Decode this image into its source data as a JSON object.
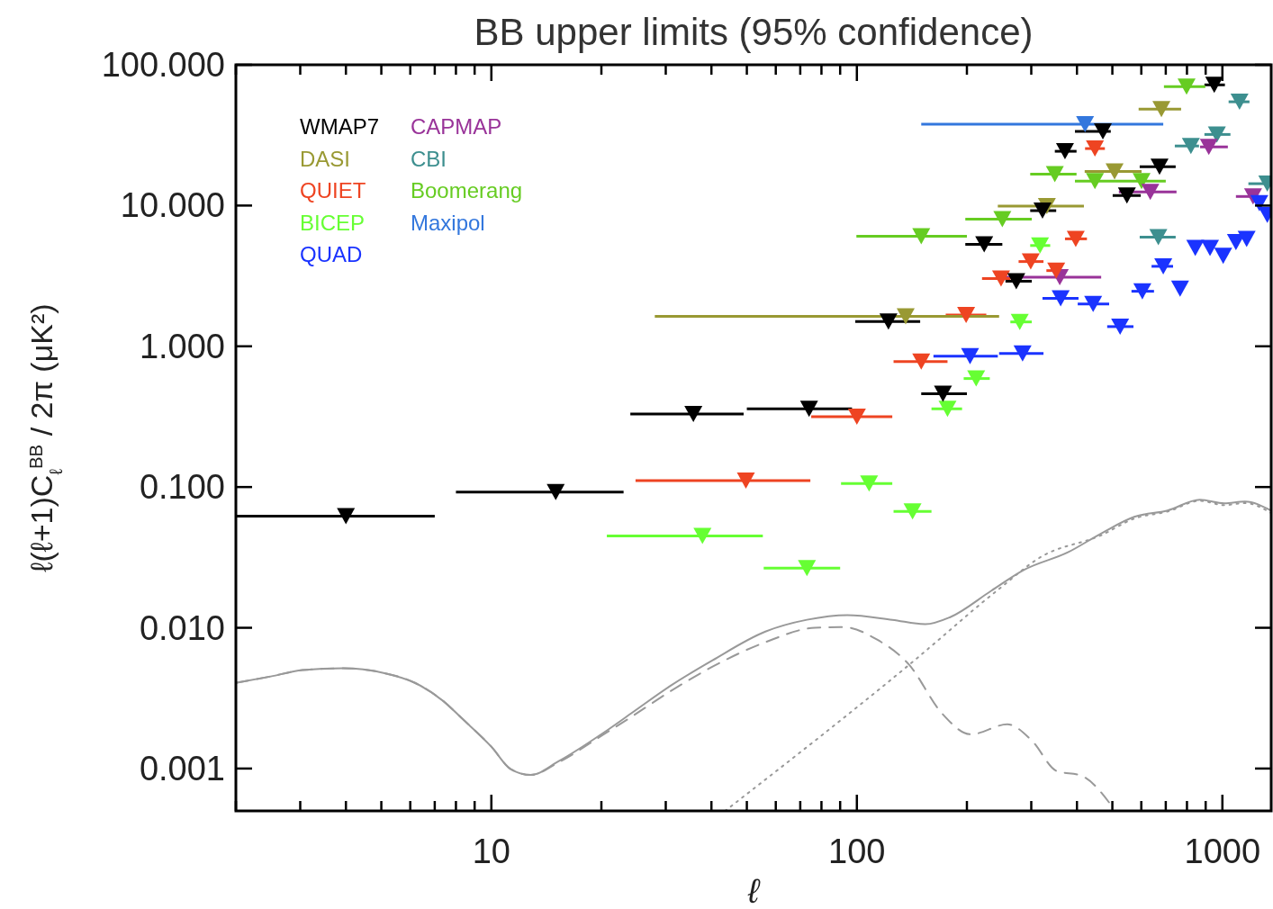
{
  "chart_data": {
    "type": "scatter",
    "title": "BB upper limits (95% confidence)",
    "xlabel": "ℓ",
    "ylabel": "ℓ(ℓ+1)C$_{ℓ}$$^{BB}$ / 2π (μK²)",
    "log": "xy",
    "xlim": [
      2,
      1360
    ],
    "ylim": [
      0.0005,
      100
    ],
    "xticks": [
      {
        "value": 2,
        "label": null
      },
      {
        "value": 3,
        "label": null
      },
      {
        "value": 4,
        "label": null
      },
      {
        "value": 5,
        "label": null
      },
      {
        "value": 6,
        "label": null
      },
      {
        "value": 7,
        "label": null
      },
      {
        "value": 8,
        "label": null
      },
      {
        "value": 9,
        "label": null
      },
      10,
      {
        "value": 20,
        "label": null
      },
      {
        "value": 30,
        "label": null
      },
      {
        "value": 40,
        "label": null
      },
      {
        "value": 50,
        "label": null
      },
      {
        "value": 60,
        "label": null
      },
      {
        "value": 70,
        "label": null
      },
      {
        "value": 80,
        "label": null
      },
      {
        "value": 90,
        "label": null
      },
      100,
      {
        "value": 200,
        "label": null
      },
      {
        "value": 300,
        "label": null
      },
      {
        "value": 400,
        "label": null
      },
      {
        "value": 500,
        "label": null
      },
      {
        "value": 600,
        "label": null
      },
      {
        "value": 700,
        "label": null
      },
      {
        "value": 800,
        "label": null
      },
      {
        "value": 900,
        "label": null
      },
      1000
    ],
    "yticks": [
      {
        "value": 0.001,
        "label": "0.001"
      },
      {
        "value": 0.01,
        "label": "0.010"
      },
      {
        "value": 0.1,
        "label": "0.100"
      },
      {
        "value": 1,
        "label": "1.000"
      },
      {
        "value": 10,
        "label": "10.000"
      },
      {
        "value": 100,
        "label": "100.000"
      }
    ],
    "legend": "top left",
    "grid": false,
    "series": [
      {
        "name": "WMAP7",
        "type": "scatter",
        "marker": "triangle",
        "color": "#000000",
        "x": [
          4.0,
          15.0,
          35.7,
          74,
          122,
          172,
          223,
          273,
          322,
          371,
          471,
          548,
          673,
          950
        ],
        "values": [
          0.062,
          0.092,
          0.33,
          0.36,
          1.5,
          0.46,
          5.3,
          2.9,
          9.2,
          24.3,
          33.6,
          11.8,
          18.9,
          72
        ],
        "xerrors": [
          [
            2,
            7
          ],
          [
            8,
            23
          ],
          [
            24,
            49
          ],
          [
            50,
            97
          ],
          [
            99,
            149
          ],
          [
            150,
            200
          ],
          [
            198,
            250
          ],
          [
            255,
            301
          ],
          [
            298,
            351
          ],
          [
            348,
            399
          ],
          [
            395,
            495
          ],
          [
            501,
            598
          ],
          [
            594,
            745
          ],
          [
            893,
            1016
          ]
        ]
      },
      {
        "name": "DASI",
        "type": "scatter",
        "marker": "triangle",
        "color": "#999933",
        "x": [
          136,
          331,
          507,
          681
        ],
        "values": [
          1.63,
          9.9,
          17.5,
          48.5
        ],
        "xerrors": [
          [
            28,
            245
          ],
          [
            243,
            418
          ],
          [
            420,
            601
          ],
          [
            590,
            771
          ]
        ]
      },
      {
        "name": "QUIET",
        "type": "scatter",
        "marker": "triangle",
        "color": "#ee4422",
        "x": [
          49.7,
          100,
          150,
          199,
          248,
          299,
          351,
          397,
          448
        ],
        "values": [
          0.111,
          0.316,
          0.78,
          1.67,
          3.03,
          4.0,
          3.45,
          5.8,
          25.4
        ],
        "xerrors": [
          [
            24.8,
            74.6
          ],
          [
            75,
            125
          ],
          [
            126,
            177
          ],
          [
            175,
            226
          ],
          [
            220,
            263
          ],
          [
            277,
            324
          ],
          [
            330,
            375
          ],
          [
            371,
            426
          ],
          [
            421,
            477
          ]
        ]
      },
      {
        "name": "BICEP",
        "type": "scatter",
        "marker": "triangle",
        "color": "#66ff33",
        "x": [
          37.8,
          73,
          108,
          142,
          177,
          212,
          279,
          317
        ],
        "values": [
          0.045,
          0.0265,
          0.106,
          0.067,
          0.36,
          0.59,
          1.49,
          5.2
        ],
        "xerrors": [
          [
            20.7,
            55.3
          ],
          [
            55.6,
            90
          ],
          [
            90.5,
            125
          ],
          [
            126,
            160
          ],
          [
            160,
            194
          ],
          [
            196,
            231
          ],
          [
            263,
            301
          ],
          [
            298,
            338
          ]
        ]
      },
      {
        "name": "QUAD",
        "type": "scatter",
        "marker": "triangle",
        "color": "#1a33ff",
        "x": [
          204,
          284,
          361,
          443,
          525,
          604,
          689,
          766,
          843,
          925,
          1005,
          1089,
          1165,
          1262,
          1327
        ],
        "values": [
          0.85,
          0.89,
          2.19,
          2.0,
          1.38,
          2.46,
          3.7,
          2.57,
          5.0,
          5.0,
          4.4,
          5.5,
          5.8,
          10.4,
          8.6
        ],
        "xerrors": [
          [
            162,
            243
          ],
          [
            245,
            324
          ],
          [
            322,
            404
          ],
          [
            402,
            490
          ],
          [
            484,
            571
          ],
          [
            564,
            650
          ],
          [
            640,
            733
          ],
          null,
          null,
          null,
          null,
          null,
          null,
          null,
          null
        ]
      },
      {
        "name": "CAPMAP",
        "type": "scatter",
        "marker": "triangle",
        "color": "#993399",
        "x": [
          359,
          635,
          918,
          1213
        ],
        "values": [
          3.1,
          12.5,
          26.1,
          11.6
        ],
        "xerrors": [
          [
            255,
            466
          ],
          [
            521,
            749
          ],
          [
            869,
            1035
          ],
          [
            1089,
            1262
          ]
        ]
      },
      {
        "name": "CBI",
        "type": "scatter",
        "marker": "triangle",
        "color": "#3d8f8f",
        "x": [
          668,
          820,
          966,
          1114,
          1327
        ],
        "values": [
          5.97,
          26.5,
          32,
          54.6,
          14.3
        ],
        "xerrors": [
          [
            594,
            745
          ],
          [
            741,
            863
          ],
          [
            893,
            1052
          ],
          [
            1040,
            1186
          ],
          [
            1178,
            1358
          ]
        ]
      },
      {
        "name": "Boomerang",
        "type": "scatter",
        "marker": "triangle",
        "color": "#66cc22",
        "x": [
          150,
          250,
          348,
          448,
          601,
          798
        ],
        "values": [
          6.05,
          8.0,
          16.7,
          14.9,
          14.9,
          70
        ],
        "xerrors": [
          [
            99.7,
            200
          ],
          [
            198,
            301
          ],
          [
            298,
            399
          ],
          [
            395,
            507
          ],
          [
            507,
            700
          ],
          [
            692,
            898
          ]
        ]
      },
      {
        "name": "Maxipol",
        "type": "scatter",
        "marker": "triangle",
        "color": "#3377dd",
        "x": [
          421
        ],
        "values": [
          37.8
        ],
        "xerrors": [
          [
            150,
            689
          ]
        ]
      },
      {
        "type": "line",
        "marker": "none",
        "line_style": "solid",
        "color": "#999999",
        "x": [
          2,
          2.49,
          3.04,
          3.93,
          5.07,
          6.18,
          7.37,
          8.34,
          10,
          11.3,
          12.8,
          15.3,
          20.3,
          24.1,
          31.0,
          40.3,
          56.2,
          73.0,
          94.2,
          125,
          154,
          180,
          233,
          286,
          379,
          468,
          574,
          708,
          868,
          1012,
          1153,
          1358
        ],
        "values": [
          0.00406,
          0.00451,
          0.005,
          0.00515,
          0.00478,
          0.00406,
          0.00303,
          0.00225,
          0.00143,
          0.00099,
          0.0009,
          0.00113,
          0.0018,
          0.00246,
          0.00389,
          0.00588,
          0.0094,
          0.0114,
          0.0123,
          0.0114,
          0.0106,
          0.0119,
          0.0183,
          0.0257,
          0.0345,
          0.0471,
          0.0614,
          0.0681,
          0.0813,
          0.0767,
          0.0789,
          0.068
        ]
      },
      {
        "type": "line",
        "marker": "none",
        "line_style": "dashed",
        "color": "#999999",
        "x": [
          2,
          2.49,
          3.04,
          3.93,
          5.07,
          6.18,
          7.37,
          8.34,
          10,
          11.3,
          12.8,
          15.3,
          20.3,
          24.1,
          31.0,
          40.3,
          56.2,
          76.8,
          92.1,
          113,
          139,
          171,
          205,
          258,
          301,
          352,
          411,
          504
        ],
        "values": [
          0.00406,
          0.00451,
          0.005,
          0.00515,
          0.00478,
          0.00406,
          0.00303,
          0.00225,
          0.00143,
          0.00099,
          0.0009,
          0.00111,
          0.00175,
          0.00232,
          0.00356,
          0.0053,
          0.0079,
          0.01,
          0.0101,
          0.0083,
          0.00546,
          0.00246,
          0.00175,
          0.00206,
          0.00158,
          0.00096,
          0.00089,
          0.00052
        ]
      },
      {
        "type": "line",
        "marker": "none",
        "line_style": "dotted",
        "color": "#999999",
        "x": [
          43.6,
          139,
          245,
          317,
          468,
          574,
          708,
          868,
          1012,
          1153,
          1358
        ],
        "values": [
          0.0005,
          0.00546,
          0.0189,
          0.0316,
          0.0457,
          0.0597,
          0.067,
          0.0798,
          0.0744,
          0.077,
          0.0655
        ]
      }
    ]
  }
}
